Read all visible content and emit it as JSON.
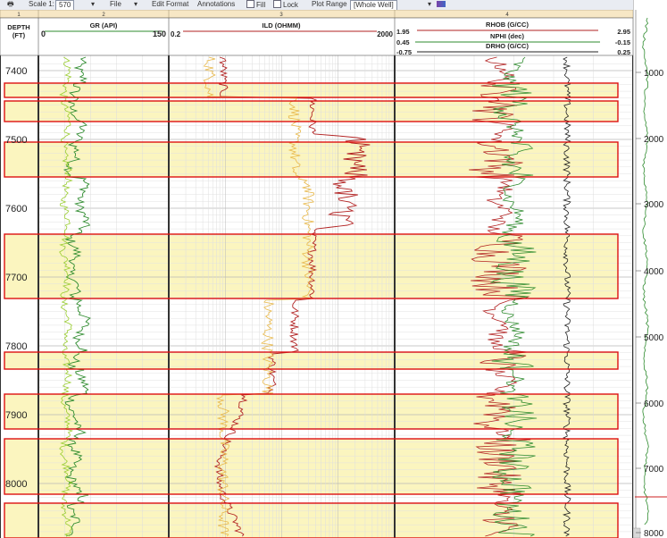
{
  "toolbar": {
    "scale_label": "Scale 1:",
    "scale_value": "570",
    "file_label": "File",
    "edit_format_label": "Edit Format",
    "annotations_label": "Annotations",
    "fill_label": "Fill",
    "lock_label": "Lock",
    "plot_range_label": "Plot Range",
    "plot_range_value": "[Whole Well]"
  },
  "track_numbers": [
    "1",
    "2",
    "3",
    "4"
  ],
  "depth_track": {
    "label_line1": "DEPTH",
    "label_line2": "(FT)",
    "depth_labels": [
      "7400",
      "7500",
      "7600",
      "7700",
      "7800",
      "7900",
      "8000"
    ]
  },
  "gr_track": {
    "curve_name": "GR (API)",
    "scale_min": "0",
    "scale_max": "150",
    "color": "#2e8b2e"
  },
  "ild_track": {
    "curve_name": "ILD (OHMM)",
    "scale_min": "0.2",
    "scale_max": "2000",
    "color": "#b22222"
  },
  "density_track": {
    "curves": [
      {
        "name": "RHOB (G/CC)",
        "min": "1.95",
        "max": "2.95",
        "color": "#b22222"
      },
      {
        "name": "NPHI (dec)",
        "min": "0.45",
        "max": "-0.15",
        "color": "#2e8b2e"
      },
      {
        "name": "DRHO (G/CC)",
        "min": "-0.75",
        "max": "0.25",
        "color": "#222222"
      }
    ]
  },
  "overview_strip": {
    "depth_labels": [
      "1000",
      "2000",
      "3000",
      "4000",
      "5000",
      "6000",
      "7000",
      "8000"
    ]
  },
  "zone_colors": {
    "fill": "#fbf5bf",
    "border": "#dd1111"
  }
}
